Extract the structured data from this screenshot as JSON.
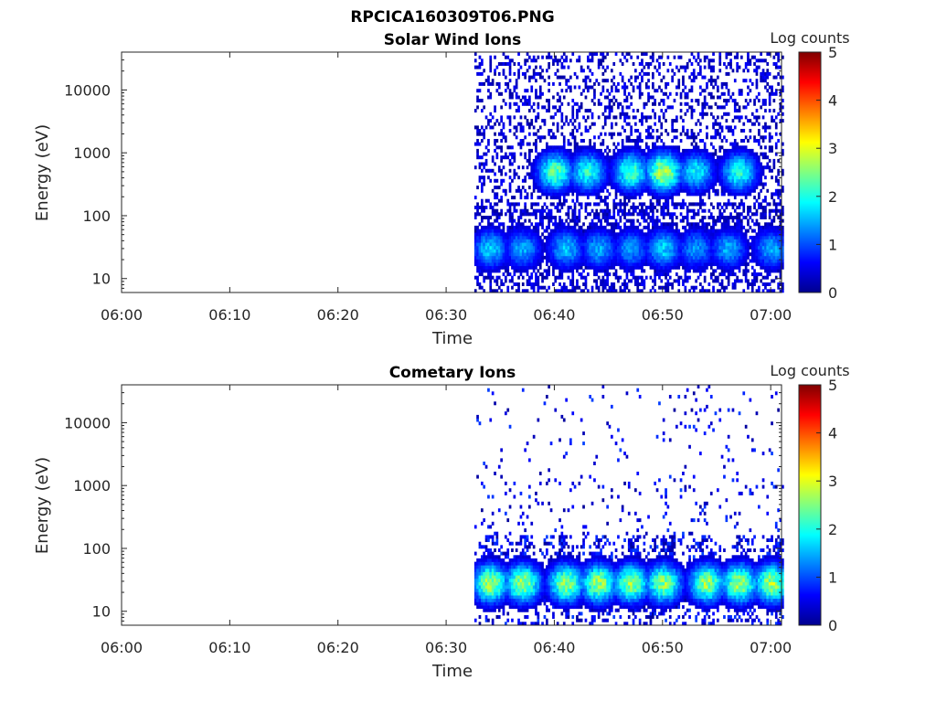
{
  "figure_title": "RPCICA160309T06.PNG",
  "colormap": [
    "#00008f",
    "#0000ff",
    "#0080ff",
    "#00ffff",
    "#80ff80",
    "#ffff00",
    "#ff8000",
    "#ff0000",
    "#800000"
  ],
  "chart_data": [
    {
      "type": "heatmap",
      "title": "Solar Wind Ions",
      "xlabel": "Time",
      "ylabel": "Energy (eV)",
      "y_scale": "log",
      "x_tick_labels": [
        "06:00",
        "06:10",
        "06:20",
        "06:30",
        "06:40",
        "06:50",
        "07:00"
      ],
      "y_tick_labels": [
        "10",
        "100",
        "1000",
        "10000"
      ],
      "y_tick_values": [
        10,
        100,
        1000,
        10000
      ],
      "xlim": [
        "06:00",
        "07:01"
      ],
      "ylim": [
        6,
        40000
      ],
      "colorbar_label": "Log counts",
      "colorbar_range": [
        0,
        5
      ],
      "colorbar_ticks": [
        "0",
        "1",
        "2",
        "3",
        "4",
        "5"
      ],
      "data_start": "06:33",
      "data_end": "07:01",
      "band_peaks_log_counts": [
        {
          "time": "06:34",
          "energy": 30,
          "value": 1.8
        },
        {
          "time": "06:37",
          "energy": 30,
          "value": 1.6
        },
        {
          "time": "06:41",
          "energy": 30,
          "value": 1.7
        },
        {
          "time": "06:44",
          "energy": 30,
          "value": 1.6
        },
        {
          "time": "06:47",
          "energy": 30,
          "value": 1.5
        },
        {
          "time": "06:50",
          "energy": 30,
          "value": 1.8
        },
        {
          "time": "06:53",
          "energy": 30,
          "value": 1.5
        },
        {
          "time": "06:56",
          "energy": 30,
          "value": 1.6
        },
        {
          "time": "07:00",
          "energy": 30,
          "value": 1.6
        },
        {
          "time": "06:40",
          "energy": 500,
          "value": 2.5
        },
        {
          "time": "06:43",
          "energy": 500,
          "value": 2.2
        },
        {
          "time": "06:47",
          "energy": 500,
          "value": 2.4
        },
        {
          "time": "06:50",
          "energy": 500,
          "value": 3.0
        },
        {
          "time": "06:53",
          "energy": 500,
          "value": 2.0
        },
        {
          "time": "06:57",
          "energy": 500,
          "value": 2.2
        }
      ]
    },
    {
      "type": "heatmap",
      "title": "Cometary Ions",
      "xlabel": "Time",
      "ylabel": "Energy (eV)",
      "y_scale": "log",
      "x_tick_labels": [
        "06:00",
        "06:10",
        "06:20",
        "06:30",
        "06:40",
        "06:50",
        "07:00"
      ],
      "y_tick_labels": [
        "10",
        "100",
        "1000",
        "10000"
      ],
      "y_tick_values": [
        10,
        100,
        1000,
        10000
      ],
      "xlim": [
        "06:00",
        "07:01"
      ],
      "ylim": [
        6,
        40000
      ],
      "colorbar_label": "Log counts",
      "colorbar_range": [
        0,
        5
      ],
      "colorbar_ticks": [
        "0",
        "1",
        "2",
        "3",
        "4",
        "5"
      ],
      "data_start": "06:33",
      "data_end": "07:01",
      "band_peaks_log_counts": [
        {
          "time": "06:34",
          "energy": 28,
          "value": 2.9
        },
        {
          "time": "06:37",
          "energy": 28,
          "value": 2.9
        },
        {
          "time": "06:41",
          "energy": 28,
          "value": 2.8
        },
        {
          "time": "06:44",
          "energy": 28,
          "value": 2.9
        },
        {
          "time": "06:47",
          "energy": 28,
          "value": 2.8
        },
        {
          "time": "06:50",
          "energy": 28,
          "value": 2.8
        },
        {
          "time": "06:54",
          "energy": 28,
          "value": 2.8
        },
        {
          "time": "06:57",
          "energy": 28,
          "value": 2.9
        },
        {
          "time": "07:00",
          "energy": 28,
          "value": 2.9
        }
      ]
    }
  ]
}
